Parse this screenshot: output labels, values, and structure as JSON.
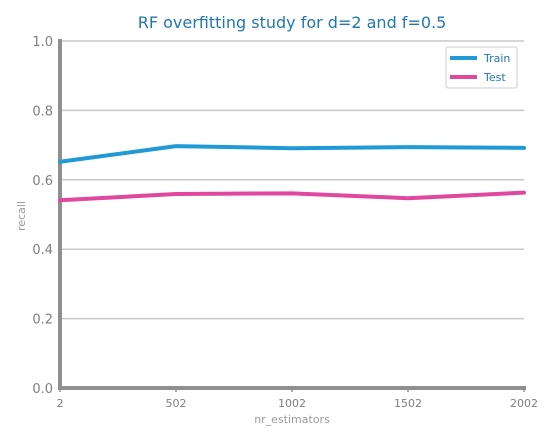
{
  "chart_data": {
    "type": "line",
    "title": "RF overfitting study for d=2 and f=0.5",
    "xlabel": "nr_estimators",
    "ylabel": "recall",
    "x": [
      2,
      502,
      1002,
      1502,
      2002
    ],
    "x_tick_labels": [
      "2",
      "502",
      "1002",
      "1502",
      "2002"
    ],
    "y_ticks": [
      0.0,
      0.2,
      0.4,
      0.6,
      0.8,
      1.0
    ],
    "y_tick_labels": [
      "0.0",
      "0.2",
      "0.4",
      "0.6",
      "0.8",
      "1.0"
    ],
    "xlim": [
      2,
      2002
    ],
    "ylim": [
      0.0,
      1.0
    ],
    "grid": true,
    "legend_position": "top-right",
    "series": [
      {
        "name": "Train",
        "color": "#1f9ad6",
        "values": [
          0.652,
          0.697,
          0.691,
          0.694,
          0.692
        ]
      },
      {
        "name": "Test",
        "color": "#e0479e",
        "values": [
          0.541,
          0.559,
          0.561,
          0.547,
          0.563
        ]
      }
    ]
  }
}
